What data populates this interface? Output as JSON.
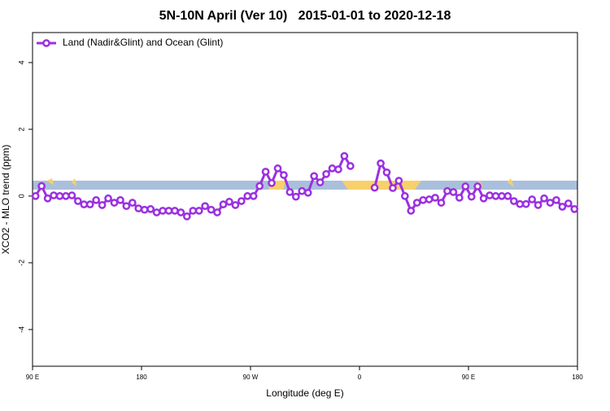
{
  "chart_data": {
    "type": "line",
    "title": "5N-10N April (Ver 10)   2015-01-01 to 2020-12-18",
    "x_label": "Longitude (deg E)",
    "y_label": "XCO2 - MLO trend (ppm)",
    "xlim": [
      90,
      540
    ],
    "xticks": [
      {
        "value": 90,
        "label": "90 E"
      },
      {
        "value": 180,
        "label": "180"
      },
      {
        "value": 270,
        "label": "90 W"
      },
      {
        "value": 360,
        "label": "0"
      },
      {
        "value": 450,
        "label": "90 E"
      },
      {
        "value": 540,
        "label": "180"
      }
    ],
    "ylim": [
      -5.1,
      4.9
    ],
    "yticks": [
      -4,
      -2,
      0,
      2,
      4
    ],
    "legend": "top-left",
    "x": [
      92.5,
      97.5,
      102.5,
      107.5,
      112.5,
      117.5,
      122.5,
      127.5,
      132.5,
      137.5,
      142.5,
      147.5,
      152.5,
      157.5,
      162.5,
      167.5,
      172.5,
      177.5,
      182.5,
      187.5,
      192.5,
      197.5,
      202.5,
      207.5,
      212.5,
      217.5,
      222.5,
      227.5,
      232.5,
      237.5,
      242.5,
      247.5,
      252.5,
      257.5,
      262.5,
      267.5,
      272.5,
      277.5,
      282.5,
      287.5,
      292.5,
      297.5,
      302.5,
      307.5,
      312.5,
      317.5,
      322.5,
      327.5,
      332.5,
      337.5,
      342.5,
      347.5,
      352.5,
      357.5,
      362.5,
      367.5,
      372.5,
      377.5,
      382.5,
      387.5,
      392.5,
      397.5,
      402.5,
      407.5,
      412.5,
      417.5,
      422.5,
      427.5,
      432.5,
      437.5,
      442.5,
      447.5,
      452.5,
      457.5,
      462.5,
      467.5,
      472.5,
      477.5,
      482.5,
      487.5,
      492.5,
      497.5,
      502.5,
      507.5,
      512.5,
      517.5,
      522.5,
      527.5,
      532.5,
      537.5
    ],
    "series": [
      {
        "name": "Land (Nadir&Glint) and Ocean (Glint)",
        "color": "#9b30e0",
        "values": [
          0.0,
          0.3,
          -0.07,
          0.02,
          0.0,
          0.0,
          0.02,
          -0.15,
          -0.25,
          -0.25,
          -0.12,
          -0.27,
          -0.07,
          -0.2,
          -0.12,
          -0.3,
          -0.2,
          -0.37,
          -0.41,
          -0.39,
          -0.49,
          -0.44,
          -0.44,
          -0.44,
          -0.49,
          -0.61,
          -0.44,
          -0.44,
          -0.3,
          -0.41,
          -0.49,
          -0.25,
          -0.17,
          -0.27,
          -0.15,
          0.0,
          0.0,
          0.3,
          0.73,
          0.39,
          0.83,
          0.63,
          0.12,
          -0.02,
          0.15,
          0.1,
          0.6,
          0.41,
          0.66,
          0.83,
          0.8,
          1.2,
          0.9,
          null,
          null,
          null,
          0.25,
          0.98,
          0.71,
          0.24,
          0.46,
          0.0,
          -0.44,
          -0.2,
          -0.12,
          -0.1,
          -0.05,
          -0.2,
          0.15,
          0.12,
          -0.05,
          0.29,
          -0.02,
          0.29,
          -0.07,
          0.02,
          0.0,
          0.0,
          0.0,
          -0.15,
          -0.24,
          -0.24,
          -0.1,
          -0.27,
          -0.07,
          -0.2,
          -0.12,
          -0.32,
          -0.22,
          -0.39
        ]
      }
    ]
  }
}
